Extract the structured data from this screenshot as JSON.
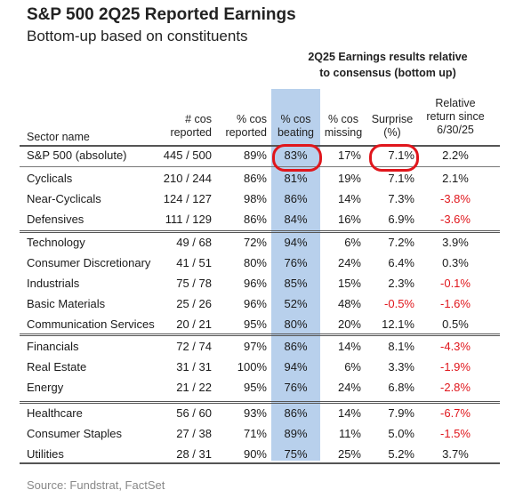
{
  "title": "S&P 500 2Q25 Reported Earnings",
  "subtitle": "Bottom-up based on constituents",
  "group_header": {
    "line1": "2Q25 Earnings results relative",
    "line2": "to consensus (bottom up)"
  },
  "columns": {
    "sector": "Sector name",
    "cos_reported": [
      "# cos",
      "reported"
    ],
    "pct_reported": [
      "% cos",
      "reported"
    ],
    "pct_beating": [
      "% cos",
      "beating"
    ],
    "pct_missing": [
      "% cos",
      "missing"
    ],
    "surprise": [
      "Surprise",
      "(%)"
    ],
    "relative_return": [
      "Relative",
      "return since",
      "6/30/25"
    ]
  },
  "colors": {
    "highlight": "#b8d0ec",
    "negative": "#e0161c",
    "circle": "#e0161c"
  },
  "rows": [
    {
      "sector": "S&P 500 (absolute)",
      "cos": "445 / 500",
      "reported": "89%",
      "beating": "83%",
      "missing": "17%",
      "surprise": "7.1%",
      "rel": "2.2%",
      "rel_negative": false
    },
    {
      "sector": "Cyclicals",
      "cos": "210 / 244",
      "reported": "86%",
      "beating": "81%",
      "missing": "19%",
      "surprise": "7.1%",
      "rel": "2.1%",
      "rel_negative": false
    },
    {
      "sector": "Near-Cyclicals",
      "cos": "124 / 127",
      "reported": "98%",
      "beating": "86%",
      "missing": "14%",
      "surprise": "7.3%",
      "rel": "-3.8%",
      "rel_negative": true
    },
    {
      "sector": "Defensives",
      "cos": "111 / 129",
      "reported": "86%",
      "beating": "84%",
      "missing": "16%",
      "surprise": "6.9%",
      "rel": "-3.6%",
      "rel_negative": true
    },
    {
      "sector": "Technology",
      "cos": "49 / 68",
      "reported": "72%",
      "beating": "94%",
      "missing": "6%",
      "surprise": "7.2%",
      "rel": "3.9%",
      "rel_negative": false
    },
    {
      "sector": "Consumer Discretionary",
      "cos": "41 / 51",
      "reported": "80%",
      "beating": "76%",
      "missing": "24%",
      "surprise": "6.4%",
      "rel": "0.3%",
      "rel_negative": false
    },
    {
      "sector": "Industrials",
      "cos": "75 / 78",
      "reported": "96%",
      "beating": "85%",
      "missing": "15%",
      "surprise": "2.3%",
      "rel": "-0.1%",
      "rel_negative": true
    },
    {
      "sector": "Basic Materials",
      "cos": "25 / 26",
      "reported": "96%",
      "beating": "52%",
      "missing": "48%",
      "surprise": "-0.5%",
      "surprise_negative": true,
      "rel": "-1.6%",
      "rel_negative": true
    },
    {
      "sector": "Communication Services",
      "cos": "20 / 21",
      "reported": "95%",
      "beating": "80%",
      "missing": "20%",
      "surprise": "12.1%",
      "rel": "0.5%",
      "rel_negative": false
    },
    {
      "sector": "Financials",
      "cos": "72 / 74",
      "reported": "97%",
      "beating": "86%",
      "missing": "14%",
      "surprise": "8.1%",
      "rel": "-4.3%",
      "rel_negative": true
    },
    {
      "sector": "Real Estate",
      "cos": "31 / 31",
      "reported": "100%",
      "beating": "94%",
      "missing": "6%",
      "surprise": "3.3%",
      "rel": "-1.9%",
      "rel_negative": true
    },
    {
      "sector": "Energy",
      "cos": "21 / 22",
      "reported": "95%",
      "beating": "76%",
      "missing": "24%",
      "surprise": "6.8%",
      "rel": "-2.8%",
      "rel_negative": true
    },
    {
      "sector": "Healthcare",
      "cos": "56 / 60",
      "reported": "93%",
      "beating": "86%",
      "missing": "14%",
      "surprise": "7.9%",
      "rel": "-6.7%",
      "rel_negative": true
    },
    {
      "sector": "Consumer Staples",
      "cos": "27 / 38",
      "reported": "71%",
      "beating": "89%",
      "missing": "11%",
      "surprise": "5.0%",
      "rel": "-1.5%",
      "rel_negative": true
    },
    {
      "sector": "Utilities",
      "cos": "28 / 31",
      "reported": "90%",
      "beating": "75%",
      "missing": "25%",
      "surprise": "5.2%",
      "rel": "3.7%",
      "rel_negative": false
    }
  ],
  "source": "Source: Fundstrat, FactSet"
}
